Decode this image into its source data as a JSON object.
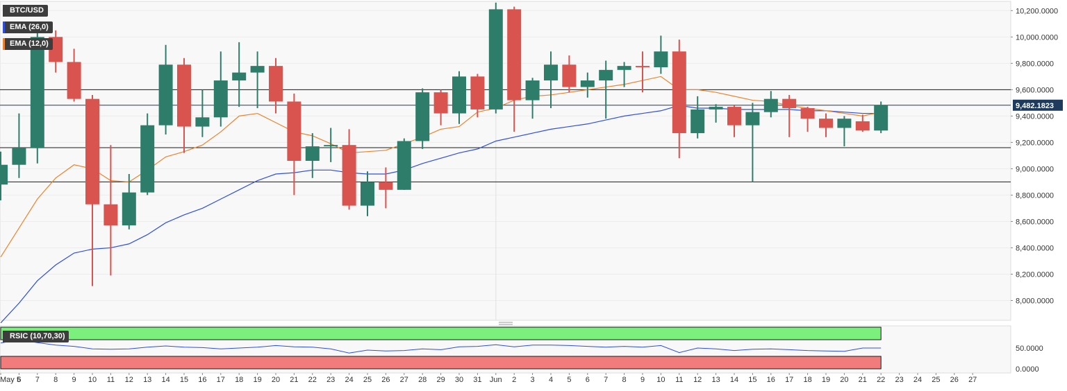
{
  "legend": {
    "symbol": "BTC/USD",
    "ema26": "EMA (26,0)",
    "ema12": "EMA (12,0)",
    "rsi": "RSIC (10,70,30)"
  },
  "colors": {
    "up": "#2e7d6b",
    "down": "#d9534f",
    "ema26": "#2f4fd8",
    "ema12": "#e8852e",
    "rsi_line": "#2f4fd8",
    "overbought": "#7cf07c",
    "oversold": "#f27c7c",
    "price_tag": "#1e3a5c"
  },
  "current_price_label": "9,482.1823",
  "price_axis_labels": [
    "10,200.0000",
    "10,000.0000",
    "9,800.0000",
    "9,600.0000",
    "9,400.0000",
    "9,200.0000",
    "9,000.0000",
    "8,800.0000",
    "8,600.0000",
    "8,400.0000",
    "8,200.0000",
    "8,000.0000"
  ],
  "rsi_axis_labels": [
    "50.0000",
    "0.0000"
  ],
  "x_axis_labels": [
    "May 5",
    "6",
    "7",
    "8",
    "9",
    "10",
    "11",
    "12",
    "13",
    "14",
    "15",
    "16",
    "17",
    "18",
    "19",
    "20",
    "21",
    "22",
    "23",
    "24",
    "25",
    "26",
    "27",
    "28",
    "29",
    "30",
    "31",
    "Jun",
    "2",
    "3",
    "4",
    "5",
    "6",
    "7",
    "8",
    "9",
    "10",
    "11",
    "12",
    "13",
    "14",
    "15",
    "16",
    "17",
    "18",
    "19",
    "20",
    "21",
    "22",
    "23",
    "24",
    "25",
    "26",
    "27"
  ],
  "chart_data": {
    "type": "candlestick",
    "title": "BTC/USD",
    "ylim": [
      7850,
      10270
    ],
    "price_ticks": [
      10200,
      10000,
      9800,
      9600,
      9400,
      9200,
      9000,
      8800,
      8600,
      8400,
      8200,
      8000
    ],
    "rsi_ylim": [
      0,
      100
    ],
    "rsi_ticks": [
      50,
      0
    ],
    "rsi_overbought": 70,
    "rsi_oversold": 30,
    "horizontal_lines": [
      9600,
      9160,
      8900
    ],
    "current_price": 9482.1823,
    "dates": [
      "May 5",
      "6",
      "7",
      "8",
      "9",
      "10",
      "11",
      "12",
      "13",
      "14",
      "15",
      "16",
      "17",
      "18",
      "19",
      "20",
      "21",
      "22",
      "23",
      "24",
      "25",
      "26",
      "27",
      "28",
      "29",
      "30",
      "31",
      "Jun 1",
      "2",
      "3",
      "4",
      "5",
      "6",
      "7",
      "8",
      "9",
      "10",
      "11",
      "12",
      "13",
      "14",
      "15",
      "16",
      "17",
      "18",
      "19",
      "20",
      "21",
      "22"
    ],
    "candles": [
      {
        "o": 8880,
        "h": 9130,
        "l": 8760,
        "c": 9030
      },
      {
        "o": 9030,
        "h": 9420,
        "l": 8930,
        "c": 9160
      },
      {
        "o": 9160,
        "h": 10050,
        "l": 9040,
        "c": 10000
      },
      {
        "o": 10000,
        "h": 10050,
        "l": 9730,
        "c": 9810
      },
      {
        "o": 9810,
        "h": 9910,
        "l": 9510,
        "c": 9530
      },
      {
        "o": 9530,
        "h": 9560,
        "l": 8110,
        "c": 8730
      },
      {
        "o": 8730,
        "h": 9180,
        "l": 8190,
        "c": 8570
      },
      {
        "o": 8570,
        "h": 8960,
        "l": 8540,
        "c": 8820
      },
      {
        "o": 8820,
        "h": 9420,
        "l": 8800,
        "c": 9330
      },
      {
        "o": 9330,
        "h": 9940,
        "l": 9260,
        "c": 9790
      },
      {
        "o": 9790,
        "h": 9840,
        "l": 9120,
        "c": 9320
      },
      {
        "o": 9320,
        "h": 9600,
        "l": 9240,
        "c": 9390
      },
      {
        "o": 9390,
        "h": 9890,
        "l": 9320,
        "c": 9670
      },
      {
        "o": 9670,
        "h": 9960,
        "l": 9470,
        "c": 9730
      },
      {
        "o": 9730,
        "h": 9890,
        "l": 9460,
        "c": 9780
      },
      {
        "o": 9780,
        "h": 9840,
        "l": 9420,
        "c": 9510
      },
      {
        "o": 9510,
        "h": 9570,
        "l": 8800,
        "c": 9060
      },
      {
        "o": 9060,
        "h": 9270,
        "l": 8930,
        "c": 9170
      },
      {
        "o": 9170,
        "h": 9310,
        "l": 9050,
        "c": 9180
      },
      {
        "o": 9180,
        "h": 9300,
        "l": 8690,
        "c": 8720
      },
      {
        "o": 8720,
        "h": 8980,
        "l": 8640,
        "c": 8900
      },
      {
        "o": 8900,
        "h": 9010,
        "l": 8700,
        "c": 8840
      },
      {
        "o": 8840,
        "h": 9230,
        "l": 8840,
        "c": 9210
      },
      {
        "o": 9210,
        "h": 9610,
        "l": 9150,
        "c": 9580
      },
      {
        "o": 9580,
        "h": 9600,
        "l": 9330,
        "c": 9420
      },
      {
        "o": 9420,
        "h": 9740,
        "l": 9340,
        "c": 9700
      },
      {
        "o": 9700,
        "h": 9720,
        "l": 9390,
        "c": 9450
      },
      {
        "o": 9450,
        "h": 10260,
        "l": 9420,
        "c": 10210
      },
      {
        "o": 10210,
        "h": 10230,
        "l": 9280,
        "c": 9520
      },
      {
        "o": 9520,
        "h": 9690,
        "l": 9380,
        "c": 9670
      },
      {
        "o": 9670,
        "h": 9890,
        "l": 9460,
        "c": 9790
      },
      {
        "o": 9790,
        "h": 9860,
        "l": 9580,
        "c": 9620
      },
      {
        "o": 9620,
        "h": 9730,
        "l": 9540,
        "c": 9670
      },
      {
        "o": 9670,
        "h": 9820,
        "l": 9380,
        "c": 9750
      },
      {
        "o": 9750,
        "h": 9810,
        "l": 9620,
        "c": 9780
      },
      {
        "o": 9780,
        "h": 9890,
        "l": 9580,
        "c": 9770
      },
      {
        "o": 9770,
        "h": 10010,
        "l": 9720,
        "c": 9890
      },
      {
        "o": 9890,
        "h": 9980,
        "l": 9080,
        "c": 9270
      },
      {
        "o": 9270,
        "h": 9550,
        "l": 9230,
        "c": 9450
      },
      {
        "o": 9450,
        "h": 9490,
        "l": 9350,
        "c": 9470
      },
      {
        "o": 9470,
        "h": 9480,
        "l": 9240,
        "c": 9330
      },
      {
        "o": 9330,
        "h": 9500,
        "l": 8900,
        "c": 9430
      },
      {
        "o": 9430,
        "h": 9590,
        "l": 9390,
        "c": 9530
      },
      {
        "o": 9530,
        "h": 9560,
        "l": 9240,
        "c": 9460
      },
      {
        "o": 9460,
        "h": 9470,
        "l": 9280,
        "c": 9380
      },
      {
        "o": 9380,
        "h": 9420,
        "l": 9240,
        "c": 9310
      },
      {
        "o": 9310,
        "h": 9400,
        "l": 9170,
        "c": 9380
      },
      {
        "o": 9360,
        "h": 9410,
        "l": 9280,
        "c": 9290
      },
      {
        "o": 9290,
        "h": 9510,
        "l": 9270,
        "c": 9482
      }
    ],
    "ema12": [
      8330,
      8550,
      8770,
      8930,
      9030,
      9000,
      8910,
      8900,
      8990,
      9090,
      9130,
      9180,
      9280,
      9400,
      9420,
      9350,
      9280,
      9250,
      9190,
      9120,
      9130,
      9140,
      9190,
      9240,
      9300,
      9320,
      9430,
      9460,
      9520,
      9550,
      9560,
      9580,
      9600,
      9620,
      9640,
      9670,
      9700,
      9600,
      9600,
      9580,
      9550,
      9520,
      9510,
      9480,
      9460,
      9440,
      9420,
      9400,
      9430
    ],
    "ema26": [
      7830,
      7980,
      8150,
      8270,
      8360,
      8390,
      8400,
      8430,
      8500,
      8590,
      8650,
      8700,
      8770,
      8840,
      8910,
      8960,
      8970,
      8990,
      8990,
      8970,
      8960,
      8960,
      8990,
      9040,
      9080,
      9120,
      9150,
      9210,
      9240,
      9270,
      9300,
      9320,
      9340,
      9370,
      9400,
      9420,
      9440,
      9480,
      9460,
      9460,
      9450,
      9450,
      9450,
      9450,
      9440,
      9440,
      9430,
      9420,
      9420
    ],
    "rsi": [
      62,
      70,
      63,
      57,
      54,
      48,
      47,
      48,
      52,
      55,
      52,
      51,
      48,
      50,
      52,
      56,
      53,
      52,
      48,
      38,
      45,
      43,
      44,
      48,
      46,
      53,
      54,
      58,
      53,
      57,
      57,
      56,
      54,
      52,
      54,
      52,
      56,
      39,
      50,
      48,
      44,
      47,
      48,
      46,
      44,
      43,
      42,
      50,
      50
    ]
  }
}
